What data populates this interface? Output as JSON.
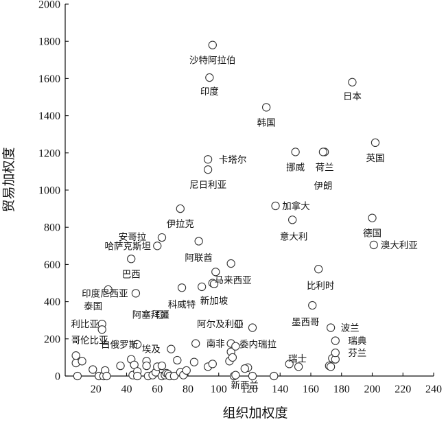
{
  "chart_data": {
    "type": "scatter",
    "xlabel": "组织加权度",
    "ylabel": "贸易加权度",
    "xlim": [
      0,
      240
    ],
    "ylim": [
      0,
      2000
    ],
    "xticks": [
      20,
      40,
      60,
      80,
      100,
      120,
      140,
      160,
      180,
      200,
      220,
      240
    ],
    "yticks": [
      0,
      200,
      400,
      600,
      800,
      1000,
      1200,
      1400,
      1600,
      1800,
      2000
    ],
    "grid": false,
    "marker": "open-circle",
    "labeled_points": [
      {
        "label": "沙特阿拉伯",
        "x": 96,
        "y": 1780
      },
      {
        "label": "印度",
        "x": 94,
        "y": 1605
      },
      {
        "label": "日本",
        "x": 187,
        "y": 1580
      },
      {
        "label": "韩国",
        "x": 131,
        "y": 1445
      },
      {
        "label": "英国",
        "x": 202,
        "y": 1255
      },
      {
        "label": "挪威",
        "x": 150,
        "y": 1205
      },
      {
        "label": "荷兰",
        "x": 169,
        "y": 1205
      },
      {
        "label": "卡塔尔",
        "x": 93,
        "y": 1165
      },
      {
        "label": "尼日利亚",
        "x": 93,
        "y": 1110
      },
      {
        "label": "伊朗",
        "x": 168,
        "y": 1205
      },
      {
        "label": "加拿大",
        "x": 137,
        "y": 915
      },
      {
        "label": "伊拉克",
        "x": 75,
        "y": 900
      },
      {
        "label": "德国",
        "x": 200,
        "y": 850
      },
      {
        "label": "意大利",
        "x": 148,
        "y": 840
      },
      {
        "label": "安哥拉",
        "x": 63,
        "y": 745
      },
      {
        "label": "哈萨克斯坦",
        "x": 60,
        "y": 700
      },
      {
        "label": "阿联酋",
        "x": 87,
        "y": 725
      },
      {
        "label": "澳大利亚",
        "x": 201,
        "y": 705
      },
      {
        "label": "巴西",
        "x": 43,
        "y": 630
      },
      {
        "label": "马来西亚",
        "x": 108,
        "y": 605
      },
      {
        "label": "印度尼西亚",
        "x": 46,
        "y": 445
      },
      {
        "label": "新加坡",
        "x": 97,
        "y": 495
      },
      {
        "label": "比利时",
        "x": 165,
        "y": 575
      },
      {
        "label": "泰国",
        "x": 28,
        "y": 465
      },
      {
        "label": "科威特",
        "x": 76,
        "y": 475
      },
      {
        "label": "墨西哥",
        "x": 161,
        "y": 380
      },
      {
        "label": "阿塞拜疆",
        "x": 62,
        "y": 330
      },
      {
        "label": "利比亚",
        "x": 24,
        "y": 280
      },
      {
        "label": "阿尔及利亚",
        "x": 113,
        "y": 280
      },
      {
        "label": "委内瑞拉",
        "x": 122,
        "y": 260
      },
      {
        "label": "波兰",
        "x": 173,
        "y": 260
      },
      {
        "label": "哥伦比亚",
        "x": 24,
        "y": 250
      },
      {
        "label": "白俄罗斯",
        "x": 47,
        "y": 170
      },
      {
        "label": "南非",
        "x": 85,
        "y": 175
      },
      {
        "label": "瑞典",
        "x": 176,
        "y": 190
      },
      {
        "label": "埃及",
        "x": 69,
        "y": 145
      },
      {
        "label": "瑞士",
        "x": 146,
        "y": 65
      },
      {
        "label": "芬兰",
        "x": 176,
        "y": 125
      },
      {
        "label": "新西兰",
        "x": 117,
        "y": 40
      }
    ],
    "unlabeled_points": [
      {
        "x": 7,
        "y": 110
      },
      {
        "x": 7,
        "y": 70
      },
      {
        "x": 8,
        "y": 0
      },
      {
        "x": 11,
        "y": 80
      },
      {
        "x": 18,
        "y": 35
      },
      {
        "x": 22,
        "y": 0
      },
      {
        "x": 25,
        "y": 0
      },
      {
        "x": 26,
        "y": 30
      },
      {
        "x": 27,
        "y": 0
      },
      {
        "x": 36,
        "y": 55
      },
      {
        "x": 43,
        "y": 90
      },
      {
        "x": 45,
        "y": 60
      },
      {
        "x": 44,
        "y": 5
      },
      {
        "x": 47,
        "y": 25
      },
      {
        "x": 47,
        "y": 0
      },
      {
        "x": 53,
        "y": 80
      },
      {
        "x": 53,
        "y": 55
      },
      {
        "x": 54,
        "y": 0
      },
      {
        "x": 57,
        "y": 5
      },
      {
        "x": 59,
        "y": 20
      },
      {
        "x": 60,
        "y": 50
      },
      {
        "x": 63,
        "y": 55
      },
      {
        "x": 63,
        "y": 0
      },
      {
        "x": 65,
        "y": 5
      },
      {
        "x": 66,
        "y": 15
      },
      {
        "x": 67,
        "y": 10
      },
      {
        "x": 68,
        "y": 0
      },
      {
        "x": 71,
        "y": 0
      },
      {
        "x": 73,
        "y": 85
      },
      {
        "x": 75,
        "y": 20
      },
      {
        "x": 77,
        "y": 5
      },
      {
        "x": 79,
        "y": 30
      },
      {
        "x": 84,
        "y": 75
      },
      {
        "x": 89,
        "y": 480
      },
      {
        "x": 93,
        "y": 50
      },
      {
        "x": 96,
        "y": 500
      },
      {
        "x": 96,
        "y": 65
      },
      {
        "x": 98,
        "y": 560
      },
      {
        "x": 107,
        "y": 80
      },
      {
        "x": 108,
        "y": 130
      },
      {
        "x": 108,
        "y": 175
      },
      {
        "x": 109,
        "y": 100
      },
      {
        "x": 110,
        "y": 0
      },
      {
        "x": 111,
        "y": 160
      },
      {
        "x": 111,
        "y": 5
      },
      {
        "x": 119,
        "y": 45
      },
      {
        "x": 122,
        "y": 0
      },
      {
        "x": 136,
        "y": 0
      },
      {
        "x": 152,
        "y": 50
      },
      {
        "x": 172,
        "y": 55
      },
      {
        "x": 174,
        "y": 95
      },
      {
        "x": 176,
        "y": 90
      },
      {
        "x": 173,
        "y": 50
      }
    ]
  }
}
